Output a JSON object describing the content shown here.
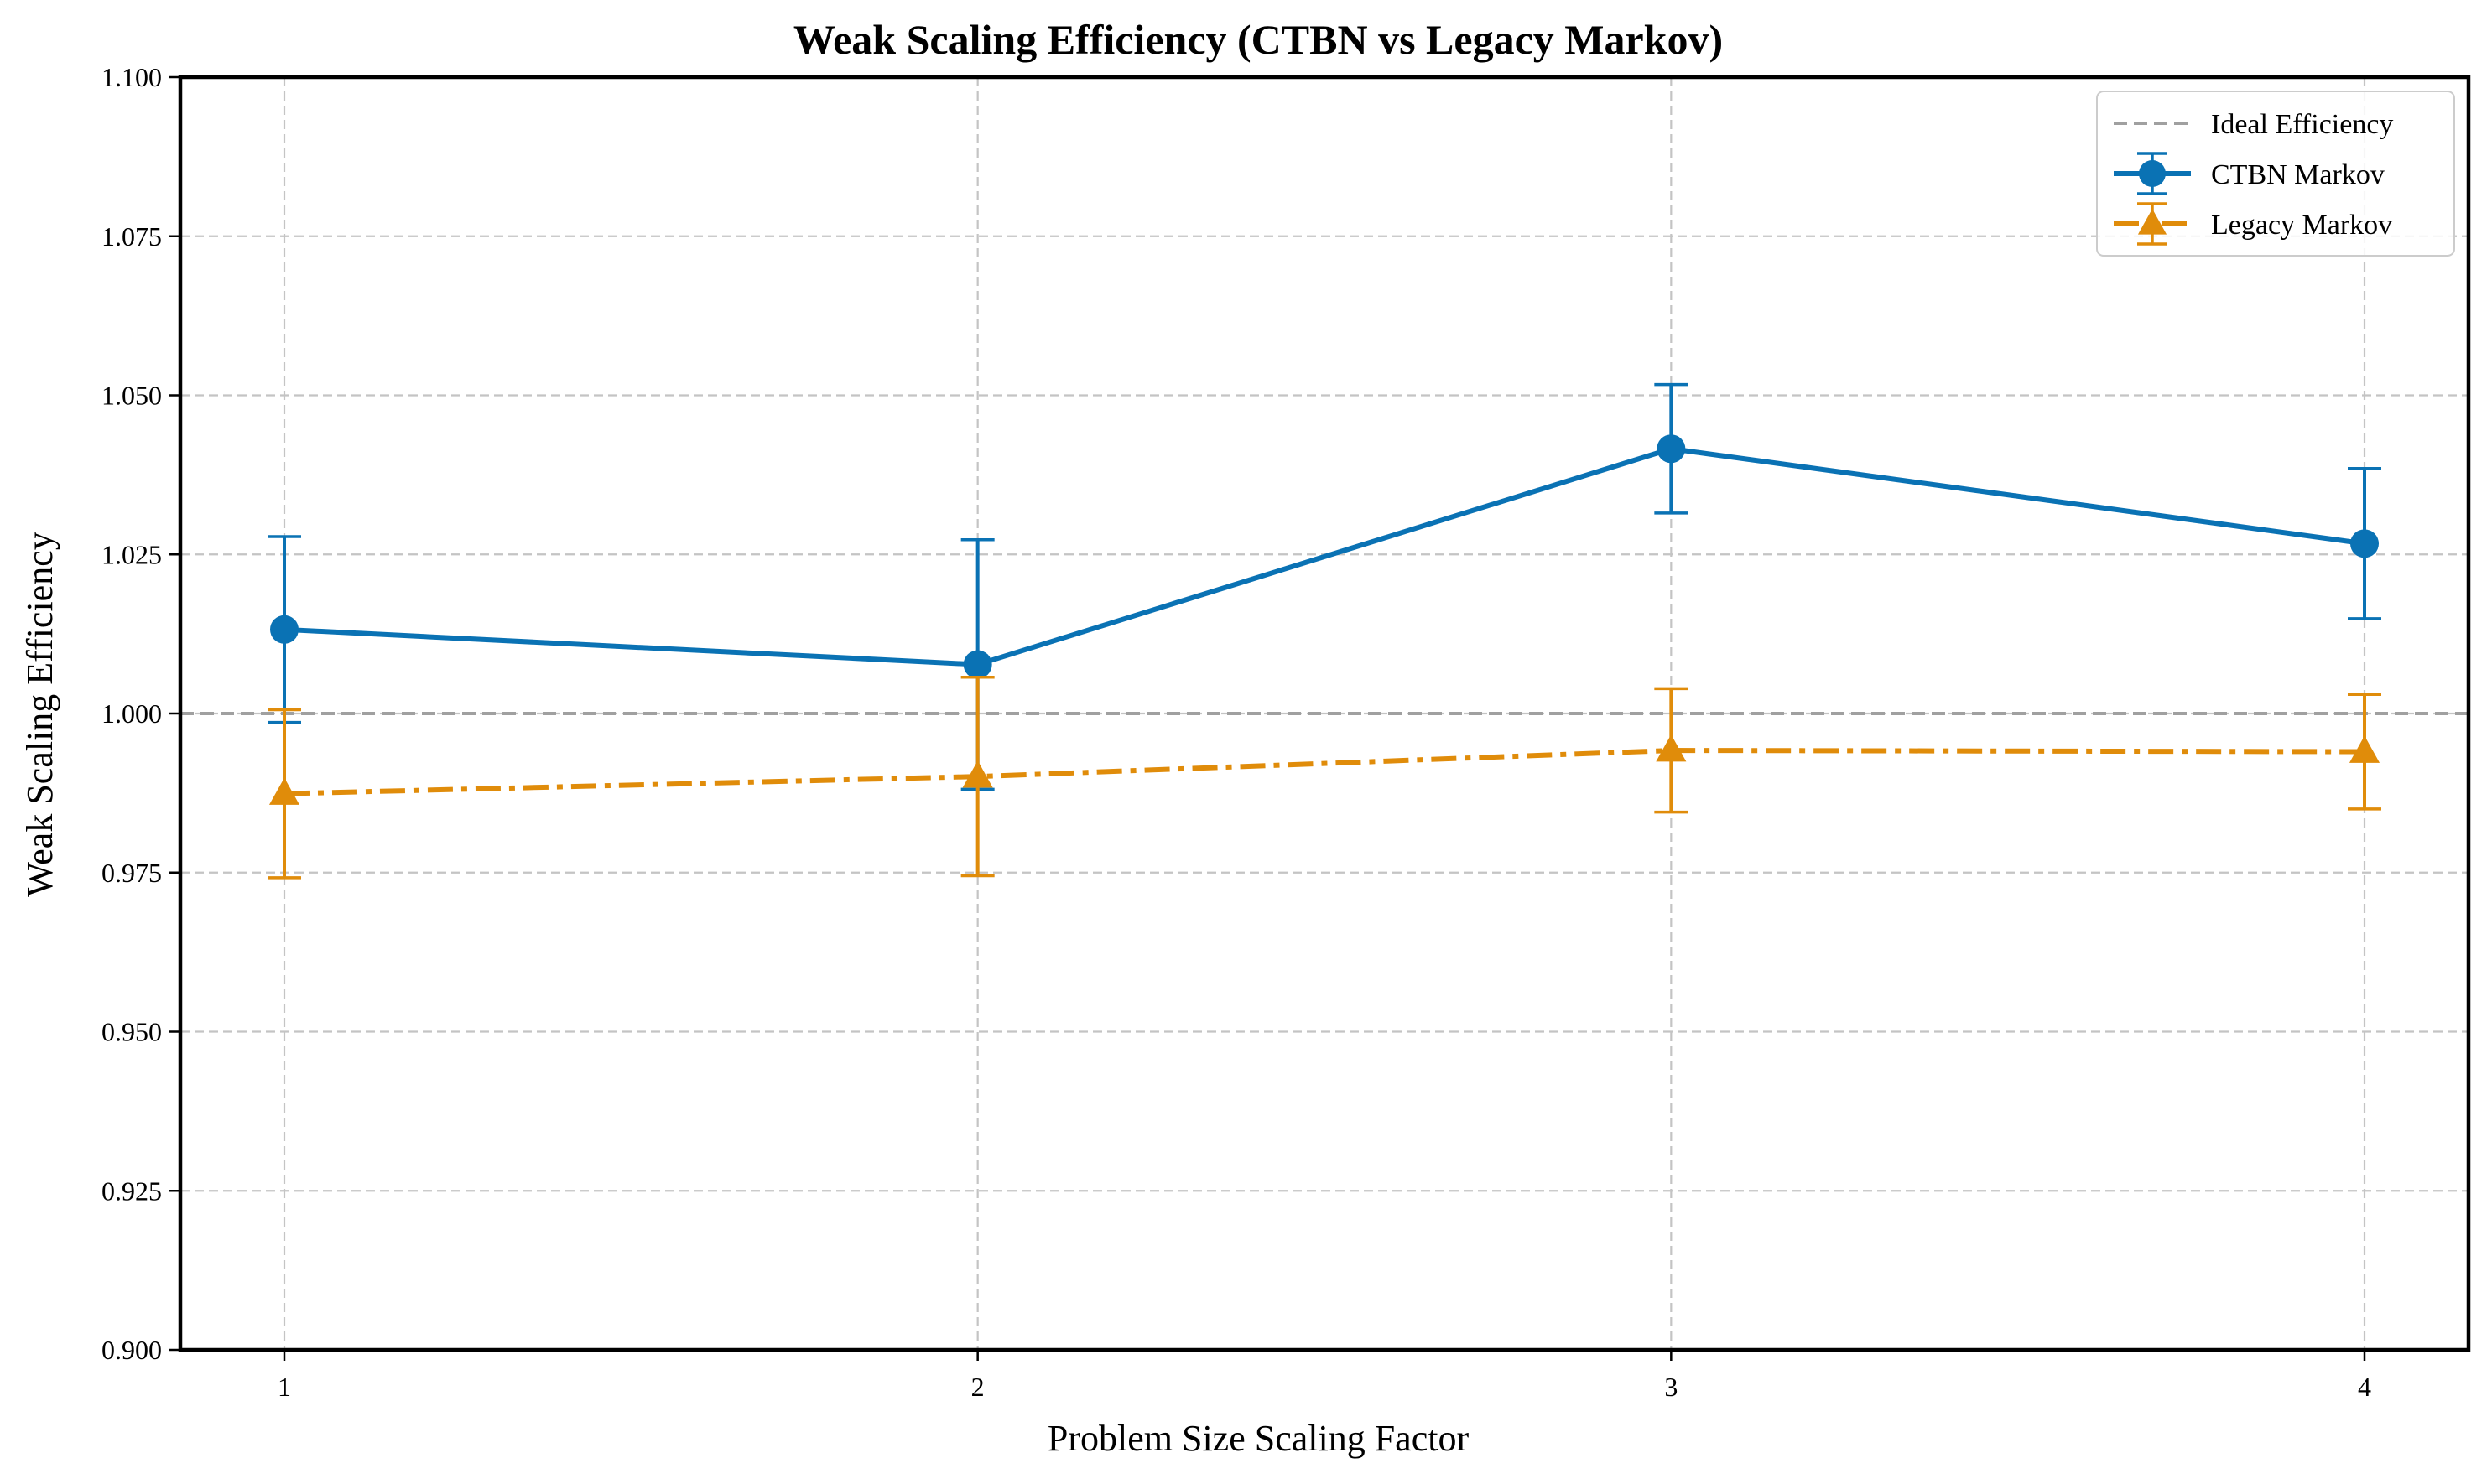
{
  "chart_data": {
    "type": "line",
    "title": "Weak Scaling Efficiency (CTBN vs Legacy Markov)",
    "xlabel": "Problem Size Scaling Factor",
    "ylabel": "Weak Scaling Efficiency",
    "x": [
      1,
      2,
      3,
      4
    ],
    "xticks": [
      "1",
      "2",
      "3",
      "4"
    ],
    "xlim": [
      0.85,
      4.15
    ],
    "ylim": [
      0.9,
      1.1
    ],
    "yticks": [
      "0.900",
      "0.925",
      "0.950",
      "0.975",
      "1.000",
      "1.025",
      "1.050",
      "1.075",
      "1.100"
    ],
    "grid": true,
    "legend_position": "top-right",
    "reference_line": {
      "name": "Ideal Efficiency",
      "y": 1.0,
      "color": "#a0a0a0",
      "style": "dashed"
    },
    "series": [
      {
        "name": "CTBN Markov",
        "color": "#0a72b4",
        "marker": "circle",
        "linestyle": "solid",
        "values": [
          1.0132,
          1.0077,
          1.0416,
          1.0267
        ],
        "errors": [
          0.0146,
          0.0196,
          0.0101,
          0.0118
        ]
      },
      {
        "name": "Legacy Markov",
        "color": "#e08c0a",
        "marker": "triangle",
        "linestyle": "dashdot",
        "values": [
          0.9874,
          0.9901,
          0.9942,
          0.994
        ],
        "errors": [
          0.0132,
          0.0156,
          0.0097,
          0.009
        ]
      }
    ]
  }
}
